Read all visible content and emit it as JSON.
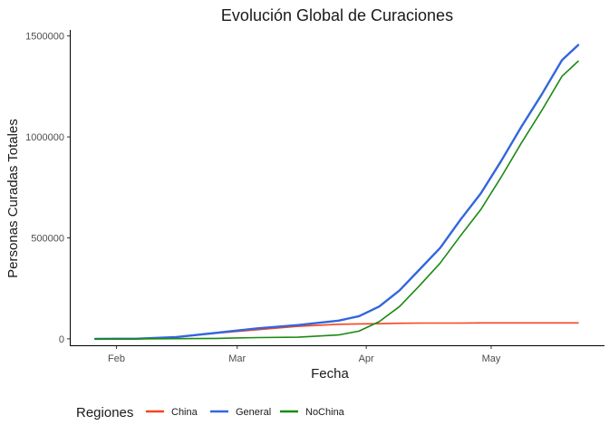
{
  "chart_data": {
    "type": "line",
    "title": "Evolución Global de Curaciones",
    "xlabel": "Fecha",
    "ylabel": "Personas Curadas Totales",
    "x_tick_labels": [
      "Feb",
      "Mar",
      "Apr",
      "May"
    ],
    "y_tick_labels": [
      "0",
      "500000",
      "1000000",
      "1500000"
    ],
    "x_ticks_days": [
      11,
      40,
      71,
      101
    ],
    "y_ticks": [
      0,
      500000,
      1000000,
      1500000
    ],
    "xlim_days": [
      0,
      128
    ],
    "ylim": [
      -32000,
      1530000
    ],
    "grid": false,
    "legend": {
      "title": "Regiones",
      "position": "bottom"
    },
    "x_days": [
      0,
      10,
      20,
      30,
      40,
      50,
      60,
      65,
      70,
      75,
      80,
      85,
      90,
      95,
      100,
      105,
      110,
      115,
      119
    ],
    "series": [
      {
        "name": "China",
        "color": "#F8431E",
        "values": [
          30,
          300,
          8000,
          28000,
          45000,
          62000,
          72000,
          74000,
          75000,
          77000,
          78000,
          78000,
          78000,
          79000,
          79000,
          79000,
          79000,
          79000,
          79000
        ]
      },
      {
        "name": "General",
        "color": "#3366DD",
        "values": [
          30,
          300,
          9000,
          30000,
          52000,
          68000,
          90000,
          112000,
          160000,
          240000,
          345000,
          450000,
          590000,
          720000,
          880000,
          1050000,
          1210000,
          1380000,
          1455000
        ]
      },
      {
        "name": "NoChina",
        "color": "#1A8A12",
        "values": [
          0,
          0,
          700,
          2000,
          6000,
          8000,
          19000,
          38000,
          85000,
          160000,
          265000,
          375000,
          510000,
          640000,
          800000,
          970000,
          1130000,
          1300000,
          1375000
        ]
      }
    ]
  }
}
